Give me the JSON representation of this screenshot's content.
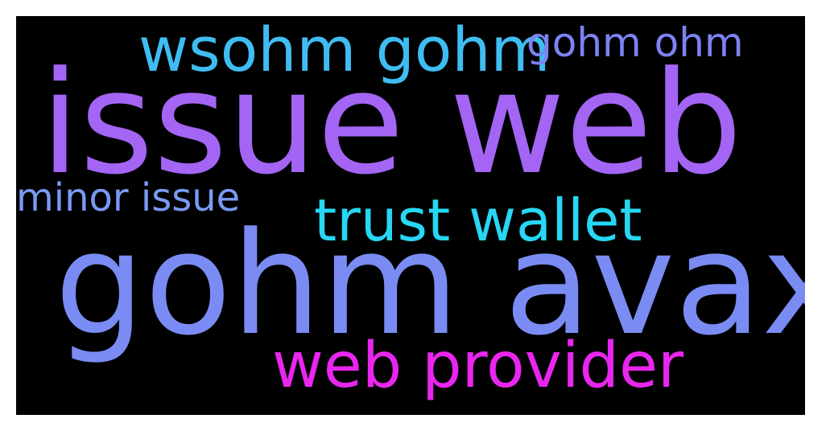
{
  "words": {
    "wsohm_gohm": {
      "text": "wsohm gohm",
      "color": "#3fbdf2"
    },
    "gohm_ohm": {
      "text": "gohm ohm",
      "color": "#7d82f2"
    },
    "issue_web": {
      "text": "issue web",
      "color": "#a465f5"
    },
    "minor_issue": {
      "text": "minor issue",
      "color": "#7a9af2"
    },
    "trust_wallet": {
      "text": "trust wallet",
      "color": "#27d7f4"
    },
    "gohm_avax": {
      "text": "gohm avax",
      "color": "#7a8cf3"
    },
    "web_provider": {
      "text": "web provider",
      "color": "#e826ee"
    }
  }
}
